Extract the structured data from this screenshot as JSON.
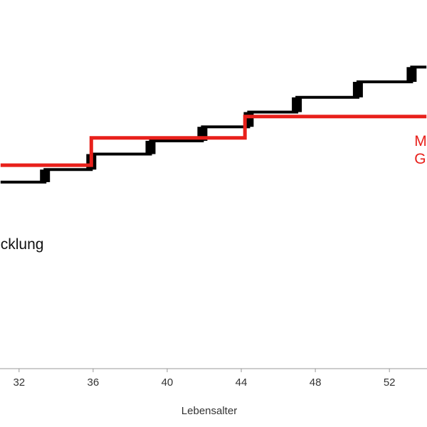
{
  "chart_data": {
    "type": "line",
    "xlabel": "Lebensalter",
    "ylabel": "",
    "title": "",
    "x_ticks": [
      32,
      36,
      40,
      44,
      48,
      52
    ],
    "xlim": [
      30.97,
      54.03
    ],
    "ylim": [
      0,
      100
    ],
    "grid": false,
    "colors": {
      "tenure_line": "#000000",
      "flat_line": "#e8201b",
      "axis": "#999999"
    },
    "annotations": [
      {
        "text": "cklung",
        "series": "black",
        "color": "#111111",
        "x": 31,
        "y": 32.4
      },
      {
        "text": "M",
        "series": "red",
        "color": "#e8201b",
        "x": 53.35,
        "y": 60.4
      },
      {
        "text": "G",
        "series": "red",
        "color": "#e8201b",
        "x": 53.35,
        "y": 55.6
      }
    ],
    "series": [
      {
        "color": "#000000",
        "style": "step",
        "x": [
          31.0,
          33.4,
          33.4,
          35.9,
          35.9,
          39.1,
          39.1,
          41.9,
          41.9,
          44.4,
          44.4,
          47.0,
          47.0,
          50.3,
          50.3,
          53.2,
          53.2,
          54.0
        ],
        "y": [
          50.6,
          50.6,
          54.0,
          54.0,
          58.2,
          58.2,
          61.8,
          61.8,
          65.6,
          65.6,
          69.6,
          69.6,
          73.6,
          73.6,
          77.8,
          77.8,
          81.8,
          81.8
        ]
      },
      {
        "color": "#e8201b",
        "style": "step",
        "x": [
          31.0,
          35.9,
          35.9,
          44.2,
          44.2,
          54.0
        ],
        "y": [
          55.2,
          55.2,
          62.6,
          62.6,
          68.4,
          68.4
        ]
      }
    ]
  }
}
